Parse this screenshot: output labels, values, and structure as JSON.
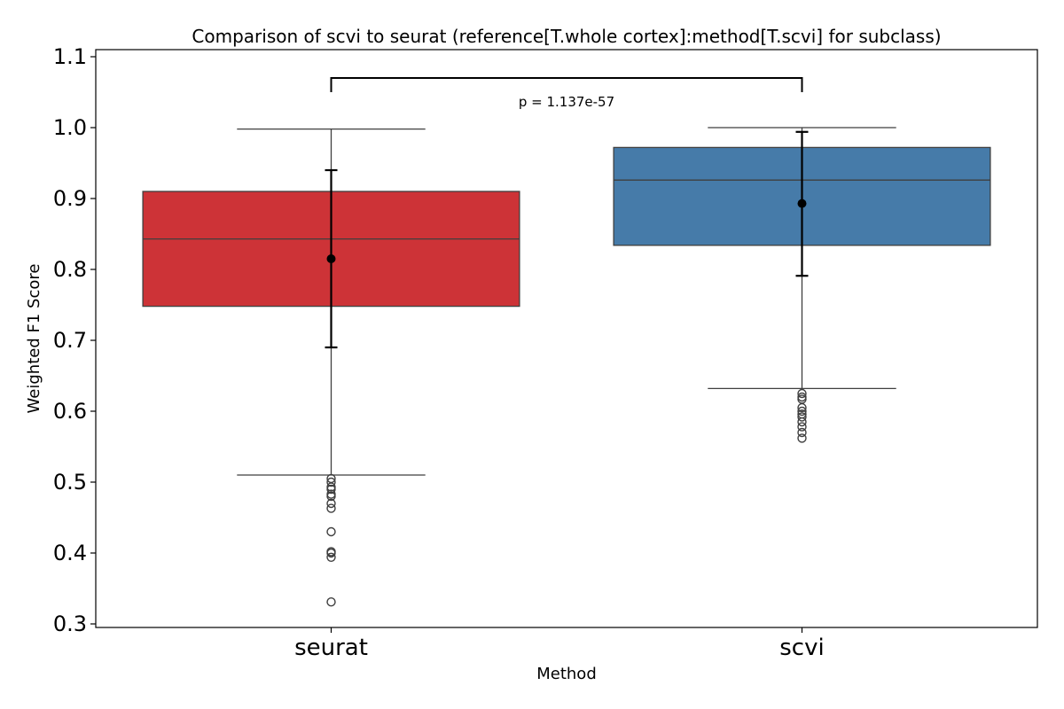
{
  "chart_data": {
    "type": "box",
    "title": "Comparison of scvi to seurat (reference[T.whole cortex]:method[T.scvi] for subclass)",
    "xlabel": "Method",
    "ylabel": "Weighted F1 Score",
    "ylim": [
      0.295,
      1.11
    ],
    "yticks": [
      0.3,
      0.4,
      0.5,
      0.6,
      0.7,
      0.8,
      0.9,
      1.0,
      1.1
    ],
    "categories": [
      "seurat",
      "scvi"
    ],
    "colors": [
      "#cd3337",
      "#467ba9"
    ],
    "boxes": [
      {
        "name": "seurat",
        "q1": 0.748,
        "median": 0.843,
        "q3": 0.91,
        "whisker_low": 0.51,
        "whisker_high": 0.998,
        "mean": 0.815,
        "error_low": 0.69,
        "error_high": 0.94,
        "outliers": [
          0.505,
          0.5,
          0.493,
          0.49,
          0.483,
          0.48,
          0.47,
          0.463,
          0.43,
          0.402,
          0.4,
          0.394,
          0.331
        ]
      },
      {
        "name": "scvi",
        "q1": 0.834,
        "median": 0.926,
        "q3": 0.972,
        "whisker_low": 0.632,
        "whisker_high": 1.0,
        "mean": 0.893,
        "error_low": 0.791,
        "error_high": 0.994,
        "outliers": [
          0.625,
          0.62,
          0.617,
          0.605,
          0.6,
          0.596,
          0.592,
          0.585,
          0.578,
          0.57,
          0.562
        ]
      }
    ],
    "annotation": {
      "text": "p = 1.137e-57",
      "bracket_y": 1.07,
      "bracket_tick_low": 1.05
    },
    "grid": false,
    "legend": "none"
  }
}
